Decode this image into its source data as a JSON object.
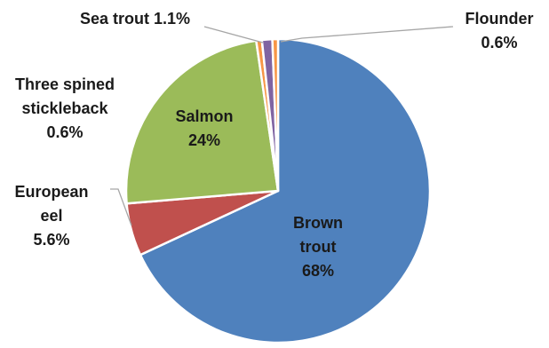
{
  "chart_data": {
    "type": "pie",
    "slices": [
      {
        "label": [
          "Brown",
          "trout"
        ],
        "value_label": "68%",
        "value": 68,
        "color": "#4f81bd"
      },
      {
        "label": [
          "European",
          "eel"
        ],
        "value_label": "5.6%",
        "value": 5.6,
        "color": "#c0504d"
      },
      {
        "label": [
          "Salmon"
        ],
        "value_label": "24%",
        "value": 24,
        "color": "#9bbb59"
      },
      {
        "label": [
          "Three spined",
          "stickleback"
        ],
        "value_label": "0.6%",
        "value": 0.6,
        "color": "#f79646"
      },
      {
        "label": [
          "Sea trout"
        ],
        "value_label": "1.1%",
        "value": 1.1,
        "color": "#8064a2"
      },
      {
        "label": [
          "Flounder"
        ],
        "value_label": "0.6%",
        "value": 0.6,
        "color": "#f79646"
      }
    ],
    "legend": "none"
  }
}
